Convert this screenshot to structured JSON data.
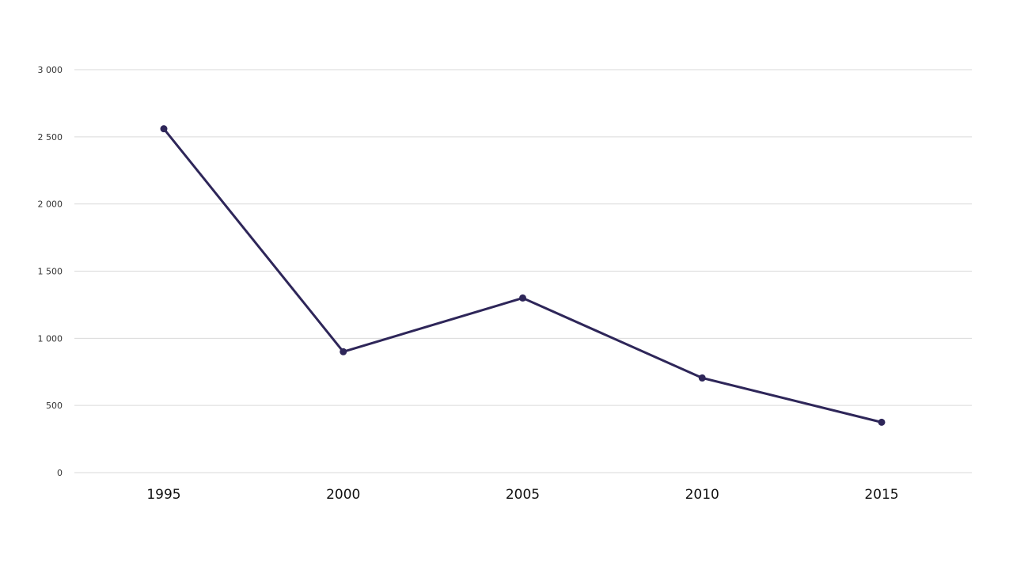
{
  "chart_data": {
    "type": "line",
    "title": "",
    "xlabel": "",
    "ylabel": "",
    "categories": [
      "1995",
      "2000",
      "2005",
      "2010",
      "2015"
    ],
    "series": [
      {
        "values": [
          2560,
          900,
          1300,
          705,
          375
        ]
      }
    ],
    "ylim": [
      0,
      3000
    ],
    "y_ticks": [
      0,
      500,
      1000,
      1500,
      2000,
      2500,
      3000
    ],
    "y_tick_labels": [
      "0",
      "500",
      "1 000",
      "1 500",
      "2 000",
      "2 500",
      "3 000"
    ],
    "grid": true,
    "legend": "none",
    "colors": {
      "line": "#2e2659",
      "grid": "#d9d9d9"
    }
  }
}
